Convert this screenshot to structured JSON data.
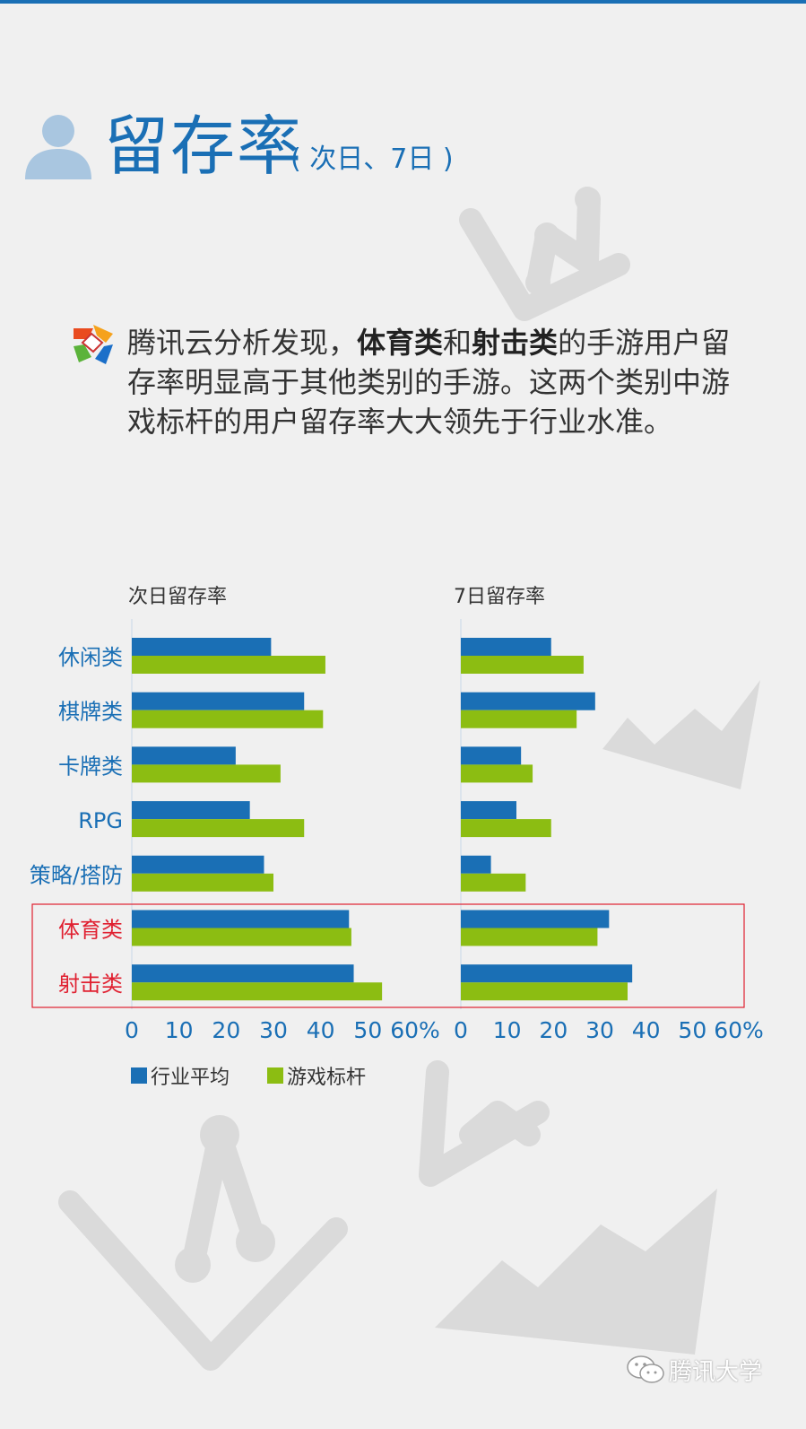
{
  "header": {
    "title": "留存率",
    "subtitle": "( 次日、7日 )"
  },
  "intro": {
    "p1": "腾讯云分析发现，",
    "b1": "体育类",
    "p2": "和",
    "b2": "射击类",
    "p3": "的手游用户留存率明显高于其他类别的手游。这两个类别中游戏标杆的用户留存率大大领先于行业水准。"
  },
  "colors": {
    "industry": "#1a6fb5",
    "benchmark": "#8cbd12",
    "category_label": "#1a6fb5",
    "highlight": "#e02030"
  },
  "chart_data": [
    {
      "type": "bar",
      "orientation": "horizontal",
      "title": "次日留存率",
      "categories": [
        "休闲类",
        "棋牌类",
        "卡牌类",
        "RPG",
        "策略/搭防",
        "体育类",
        "射击类"
      ],
      "highlighted_categories": [
        "体育类",
        "射击类"
      ],
      "series": [
        {
          "name": "行业平均",
          "values": [
            29.5,
            36.5,
            22,
            25,
            28,
            46,
            47
          ]
        },
        {
          "name": "游戏标杆",
          "values": [
            41,
            40.5,
            31.5,
            36.5,
            30,
            46.5,
            53
          ]
        }
      ],
      "x_ticks": [
        "0",
        "10",
        "20",
        "30",
        "40",
        "50",
        "60%"
      ],
      "xlim": [
        0,
        60
      ]
    },
    {
      "type": "bar",
      "orientation": "horizontal",
      "title": "7日留存率",
      "categories": [
        "休闲类",
        "棋牌类",
        "卡牌类",
        "RPG",
        "策略/搭防",
        "体育类",
        "射击类"
      ],
      "highlighted_categories": [
        "体育类",
        "射击类"
      ],
      "series": [
        {
          "name": "行业平均",
          "values": [
            19.5,
            29,
            13,
            12,
            6.5,
            32,
            37
          ]
        },
        {
          "name": "游戏标杆",
          "values": [
            26.5,
            25,
            15.5,
            19.5,
            14,
            29.5,
            36
          ]
        }
      ],
      "x_ticks": [
        "0",
        "10",
        "20",
        "30",
        "40",
        "50",
        "60%"
      ],
      "xlim": [
        0,
        60
      ]
    }
  ],
  "legend": [
    {
      "name": "行业平均",
      "color": "#1a6fb5"
    },
    {
      "name": "游戏标杆",
      "color": "#8cbd12"
    }
  ],
  "watermark": {
    "text": "腾讯大学",
    "icon": "wechat-icon"
  }
}
